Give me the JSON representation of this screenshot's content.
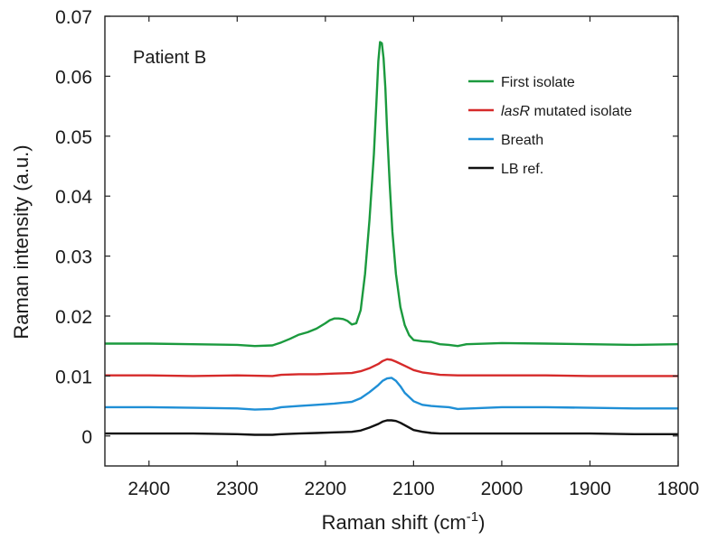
{
  "chart_data": {
    "type": "line",
    "title": "",
    "annotation": "Patient B",
    "xlabel_main": "Raman shift (cm",
    "xlabel_sup": "-1",
    "xlabel_end": ")",
    "ylabel": "Raman intensity (a.u.)",
    "xlim": [
      2450,
      1800
    ],
    "ylim": [
      -0.005,
      0.07
    ],
    "x_reversed": true,
    "x_ticks": [
      2400,
      2300,
      2200,
      2100,
      2000,
      1900,
      1800
    ],
    "y_ticks": [
      0,
      0.01,
      0.02,
      0.03,
      0.04,
      0.05,
      0.06,
      0.07
    ],
    "y_tick_labels": [
      "0",
      "0.01",
      "0.02",
      "0.03",
      "0.04",
      "0.05",
      "0.06",
      "0.07"
    ],
    "legend_position": "top-right",
    "series": [
      {
        "name": "First isolate",
        "name_italic": "",
        "color": "#1b9a3e",
        "x": [
          2450,
          2400,
          2350,
          2300,
          2280,
          2260,
          2250,
          2240,
          2230,
          2220,
          2210,
          2200,
          2195,
          2190,
          2185,
          2180,
          2175,
          2170,
          2165,
          2160,
          2155,
          2150,
          2145,
          2142,
          2140,
          2138,
          2136,
          2134,
          2132,
          2130,
          2127,
          2124,
          2120,
          2115,
          2110,
          2105,
          2100,
          2090,
          2080,
          2070,
          2060,
          2050,
          2040,
          2000,
          1950,
          1900,
          1850,
          1800
        ],
        "y": [
          0.0154,
          0.0154,
          0.0153,
          0.0152,
          0.015,
          0.0151,
          0.0156,
          0.0162,
          0.0169,
          0.0173,
          0.0179,
          0.0188,
          0.0193,
          0.0196,
          0.0196,
          0.0195,
          0.0192,
          0.0186,
          0.0188,
          0.021,
          0.027,
          0.036,
          0.047,
          0.056,
          0.0625,
          0.0657,
          0.0655,
          0.063,
          0.058,
          0.051,
          0.042,
          0.034,
          0.027,
          0.0215,
          0.0185,
          0.0168,
          0.016,
          0.0158,
          0.0157,
          0.0153,
          0.0152,
          0.015,
          0.0153,
          0.0155,
          0.0154,
          0.0153,
          0.0152,
          0.0153
        ]
      },
      {
        "name": " mutated isolate",
        "name_italic": "lasR",
        "color": "#d62a2a",
        "x": [
          2450,
          2400,
          2350,
          2300,
          2260,
          2250,
          2230,
          2210,
          2190,
          2170,
          2160,
          2150,
          2140,
          2135,
          2130,
          2125,
          2120,
          2110,
          2100,
          2090,
          2080,
          2070,
          2050,
          2000,
          1950,
          1900,
          1850,
          1800
        ],
        "y": [
          0.0101,
          0.0101,
          0.01,
          0.0101,
          0.01,
          0.0102,
          0.0103,
          0.0103,
          0.0104,
          0.0105,
          0.0108,
          0.0113,
          0.012,
          0.0125,
          0.0128,
          0.0127,
          0.0124,
          0.0117,
          0.011,
          0.0106,
          0.0104,
          0.0102,
          0.0101,
          0.0101,
          0.0101,
          0.01,
          0.01,
          0.01
        ]
      },
      {
        "name": "Breath",
        "name_italic": "",
        "color": "#1f8fd6",
        "x": [
          2450,
          2400,
          2350,
          2300,
          2280,
          2260,
          2250,
          2230,
          2210,
          2190,
          2170,
          2160,
          2150,
          2140,
          2135,
          2130,
          2125,
          2120,
          2115,
          2110,
          2100,
          2090,
          2080,
          2070,
          2060,
          2050,
          2000,
          1950,
          1900,
          1850,
          1800
        ],
        "y": [
          0.0048,
          0.0048,
          0.0047,
          0.0046,
          0.0044,
          0.0045,
          0.0048,
          0.005,
          0.0052,
          0.0054,
          0.0057,
          0.0063,
          0.0073,
          0.0085,
          0.0092,
          0.0096,
          0.0097,
          0.0092,
          0.0083,
          0.0072,
          0.0058,
          0.0052,
          0.005,
          0.0049,
          0.0048,
          0.0045,
          0.0048,
          0.0048,
          0.0047,
          0.0046,
          0.0046
        ]
      },
      {
        "name": "LB ref.",
        "name_italic": "",
        "color": "#111111",
        "x": [
          2450,
          2400,
          2350,
          2300,
          2280,
          2260,
          2250,
          2230,
          2210,
          2190,
          2170,
          2160,
          2150,
          2140,
          2135,
          2130,
          2125,
          2120,
          2115,
          2110,
          2100,
          2090,
          2080,
          2070,
          2050,
          2000,
          1950,
          1900,
          1850,
          1800
        ],
        "y": [
          0.0004,
          0.0004,
          0.0004,
          0.0003,
          0.0002,
          0.0002,
          0.0003,
          0.0004,
          0.0005,
          0.0006,
          0.0007,
          0.0009,
          0.0014,
          0.002,
          0.0024,
          0.0026,
          0.0026,
          0.0025,
          0.0022,
          0.0018,
          0.001,
          0.0007,
          0.0005,
          0.0004,
          0.0004,
          0.0004,
          0.0004,
          0.0004,
          0.0003,
          0.0003
        ]
      }
    ]
  }
}
